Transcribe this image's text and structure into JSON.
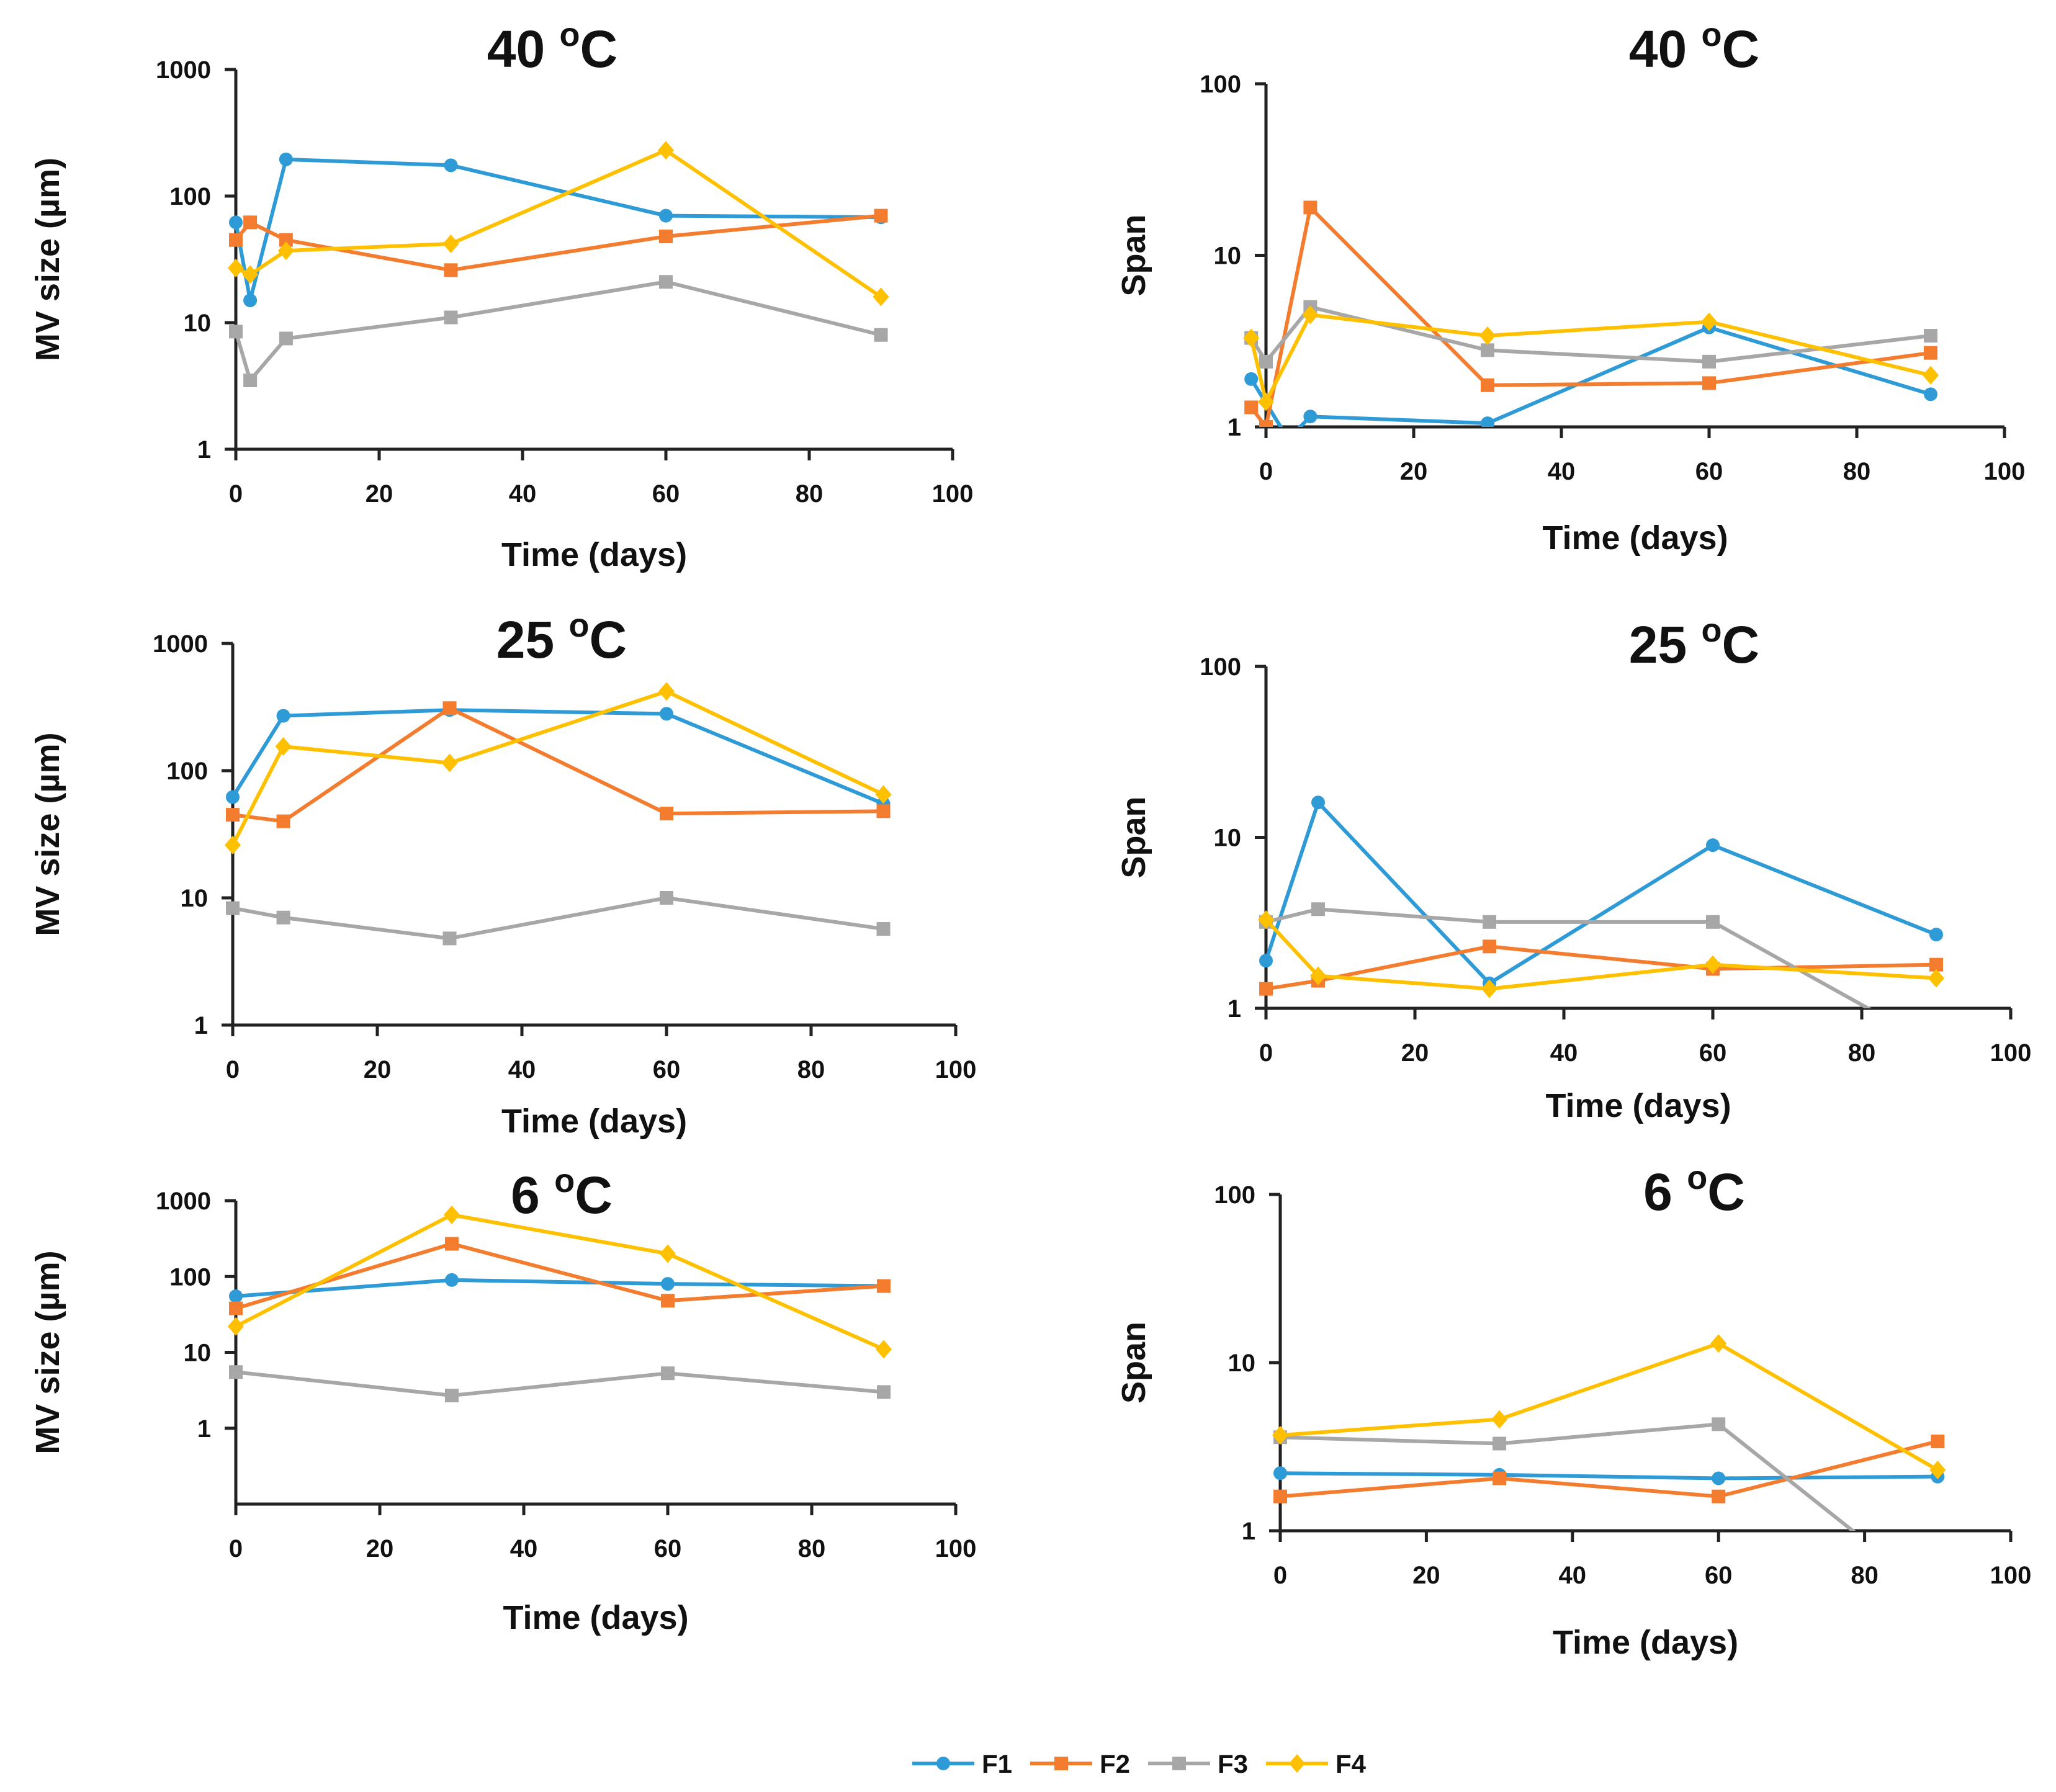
{
  "legend": {
    "entries": [
      {
        "name": "F1",
        "color": "#2e9bd6",
        "marker": "circle"
      },
      {
        "name": "F2",
        "color": "#f37c2f",
        "marker": "square"
      },
      {
        "name": "F3",
        "color": "#a7a7a7",
        "marker": "square"
      },
      {
        "name": "F4",
        "color": "#ffc000",
        "marker": "diamond"
      }
    ]
  },
  "chart_data": [
    {
      "id": "mv-40",
      "type": "line",
      "yscale": "log",
      "title": "40",
      "title_unit": "C",
      "title_degree": "o",
      "xlabel": "Time (days)",
      "ylabel": "MV size (µm)",
      "xlim": [
        0,
        100
      ],
      "ylim": [
        1,
        1000
      ],
      "xticks": [
        "0",
        "20",
        "40",
        "60",
        "80",
        "100"
      ],
      "yticks": [
        "1",
        "10",
        "100",
        "1000"
      ],
      "series": [
        {
          "name": "F1",
          "x": [
            0,
            2,
            7,
            30,
            60,
            90
          ],
          "y": [
            62,
            15,
            195,
            175,
            70,
            68
          ]
        },
        {
          "name": "F2",
          "x": [
            0,
            2,
            7,
            30,
            60,
            90
          ],
          "y": [
            45,
            62,
            45,
            26,
            48,
            70
          ]
        },
        {
          "name": "F3",
          "x": [
            0,
            2,
            7,
            30,
            60,
            90
          ],
          "y": [
            8.5,
            3.5,
            7.5,
            11,
            21,
            8
          ]
        },
        {
          "name": "F4",
          "x": [
            0,
            2,
            7,
            30,
            60,
            90
          ],
          "y": [
            27,
            24,
            37,
            42,
            230,
            16
          ]
        }
      ]
    },
    {
      "id": "span-40",
      "type": "line",
      "yscale": "log",
      "title": "40",
      "title_unit": "C",
      "title_degree": "o",
      "xlabel": "Time (days)",
      "ylabel": "Span",
      "xlim": [
        0,
        100
      ],
      "ylim": [
        1,
        100
      ],
      "xticks": [
        "0",
        "20",
        "40",
        "60",
        "80",
        "100"
      ],
      "yticks": [
        "1",
        "10",
        "100"
      ],
      "series": [
        {
          "name": "F1",
          "x": [
            -2,
            3,
            6,
            30,
            60,
            90
          ],
          "y": [
            1.9,
            0.85,
            1.15,
            1.05,
            3.8,
            1.55
          ]
        },
        {
          "name": "F2",
          "x": [
            -2,
            0,
            6,
            30,
            60,
            90
          ],
          "y": [
            1.3,
            1.0,
            19,
            1.75,
            1.8,
            2.7
          ]
        },
        {
          "name": "F3",
          "x": [
            -2,
            0,
            6,
            30,
            60,
            90
          ],
          "y": [
            3.3,
            2.4,
            5.0,
            2.8,
            2.4,
            3.4
          ]
        },
        {
          "name": "F4",
          "x": [
            -2,
            0,
            6,
            30,
            60,
            90
          ],
          "y": [
            3.3,
            1.4,
            4.5,
            3.4,
            4.1,
            2.0
          ]
        }
      ]
    },
    {
      "id": "mv-25",
      "type": "line",
      "yscale": "log",
      "title": "25",
      "title_unit": "C",
      "title_degree": "o",
      "xlabel": "Time (days)",
      "ylabel": "MV size (µm)",
      "xlim": [
        0,
        100
      ],
      "ylim": [
        1,
        1000
      ],
      "xticks": [
        "0",
        "20",
        "40",
        "60",
        "80",
        "100"
      ],
      "yticks": [
        "1",
        "10",
        "100",
        "1000"
      ],
      "series": [
        {
          "name": "F1",
          "x": [
            0,
            7,
            30,
            60,
            90
          ],
          "y": [
            62,
            270,
            300,
            280,
            55
          ]
        },
        {
          "name": "F2",
          "x": [
            0,
            7,
            30,
            60,
            90
          ],
          "y": [
            45,
            40,
            310,
            46,
            48
          ]
        },
        {
          "name": "F3",
          "x": [
            0,
            7,
            30,
            60,
            90
          ],
          "y": [
            8.3,
            7,
            4.8,
            10,
            5.7
          ]
        },
        {
          "name": "F4",
          "x": [
            0,
            7,
            30,
            60,
            90
          ],
          "y": [
            26,
            155,
            115,
            420,
            65
          ]
        }
      ]
    },
    {
      "id": "span-25",
      "type": "line",
      "yscale": "log",
      "title": "25",
      "title_unit": "C",
      "title_degree": "o",
      "xlabel": "Time (days)",
      "ylabel": "Span",
      "xlim": [
        0,
        100
      ],
      "ylim": [
        1,
        100
      ],
      "xticks": [
        "0",
        "20",
        "40",
        "60",
        "80",
        "100"
      ],
      "yticks": [
        "1",
        "10",
        "100"
      ],
      "series": [
        {
          "name": "F1",
          "x": [
            0,
            7,
            30,
            60,
            90
          ],
          "y": [
            1.9,
            16,
            1.4,
            9.0,
            2.7
          ]
        },
        {
          "name": "F2",
          "x": [
            0,
            7,
            30,
            60,
            90
          ],
          "y": [
            1.3,
            1.45,
            2.3,
            1.7,
            1.8
          ]
        },
        {
          "name": "F3",
          "x": [
            0,
            7,
            30,
            60,
            90
          ],
          "y": [
            3.2,
            3.8,
            3.2,
            3.2,
            0.6
          ]
        },
        {
          "name": "F4",
          "x": [
            0,
            7,
            30,
            60,
            90
          ],
          "y": [
            3.3,
            1.55,
            1.3,
            1.8,
            1.5
          ]
        }
      ]
    },
    {
      "id": "mv-6",
      "type": "line",
      "yscale": "log",
      "title": "6",
      "title_unit": "C",
      "title_degree": "o",
      "xlabel": "Time (days)",
      "ylabel": "MV size (µm)",
      "xlim": [
        0,
        100
      ],
      "ylim": [
        0.1,
        1000
      ],
      "xticks": [
        "0",
        "20",
        "40",
        "60",
        "80",
        "100"
      ],
      "yticks": [
        "1",
        "10",
        "100",
        "1000"
      ],
      "series": [
        {
          "name": "F1",
          "x": [
            0,
            30,
            60,
            90
          ],
          "y": [
            55,
            90,
            80,
            75
          ]
        },
        {
          "name": "F2",
          "x": [
            0,
            30,
            60,
            90
          ],
          "y": [
            38,
            270,
            48,
            75
          ]
        },
        {
          "name": "F3",
          "x": [
            0,
            30,
            60,
            90
          ],
          "y": [
            5.5,
            2.7,
            5.3,
            3.0
          ]
        },
        {
          "name": "F4",
          "x": [
            0,
            30,
            60,
            90
          ],
          "y": [
            22,
            650,
            200,
            11
          ]
        }
      ]
    },
    {
      "id": "span-6",
      "type": "line",
      "yscale": "log",
      "title": "6",
      "title_unit": "C",
      "title_degree": "o",
      "xlabel": "Time (days)",
      "ylabel": "Span",
      "xlim": [
        0,
        100
      ],
      "ylim": [
        1,
        100
      ],
      "xticks": [
        "0",
        "20",
        "40",
        "60",
        "80",
        "100"
      ],
      "yticks": [
        "1",
        "10",
        "100"
      ],
      "series": [
        {
          "name": "F1",
          "x": [
            0,
            30,
            60,
            90
          ],
          "y": [
            2.2,
            2.15,
            2.05,
            2.1
          ]
        },
        {
          "name": "F2",
          "x": [
            0,
            30,
            60,
            90
          ],
          "y": [
            1.6,
            2.05,
            1.6,
            3.4
          ]
        },
        {
          "name": "F3",
          "x": [
            0,
            30,
            60,
            82
          ],
          "y": [
            3.6,
            3.3,
            4.3,
            0.75
          ]
        },
        {
          "name": "F4",
          "x": [
            0,
            30,
            60,
            90
          ],
          "y": [
            3.7,
            4.6,
            13,
            2.3
          ]
        }
      ]
    }
  ]
}
